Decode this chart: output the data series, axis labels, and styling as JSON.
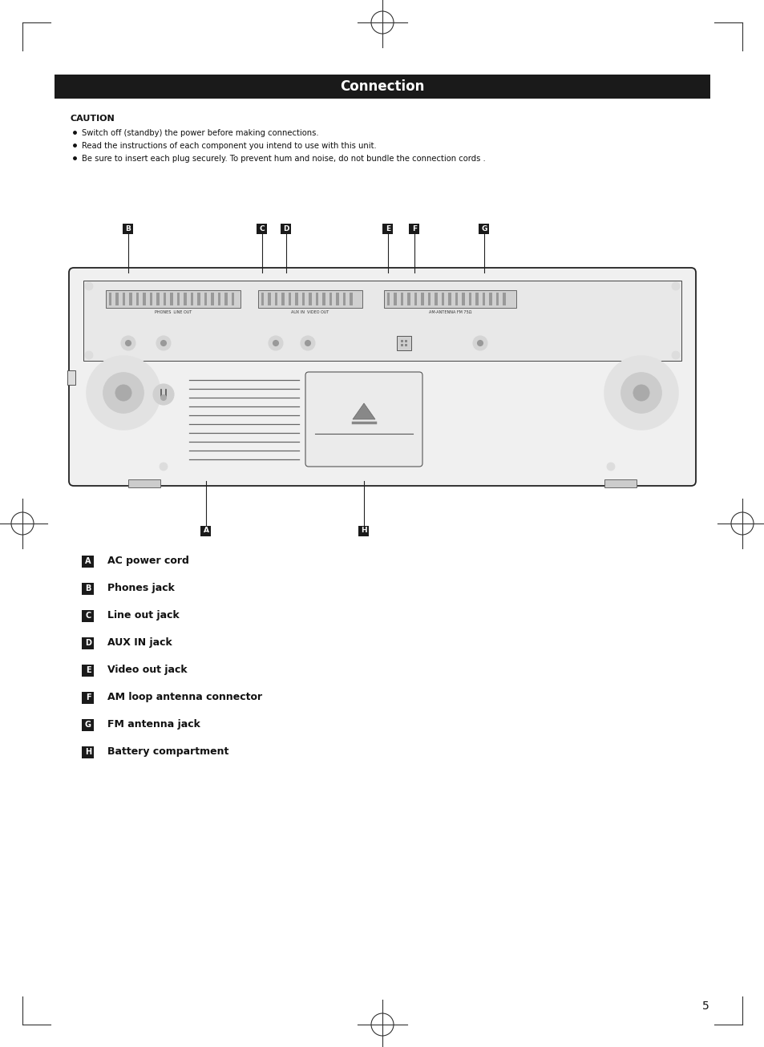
{
  "title": "Connection",
  "title_bg": "#1a1a1a",
  "title_color": "#ffffff",
  "title_fontsize": 12,
  "page_bg": "#ffffff",
  "caution_title": "CAUTION",
  "caution_bullets": [
    "Switch off (standby) the power before making connections.",
    "Read the instructions of each component you intend to use with this unit.",
    "Be sure to insert each plug securely. To prevent hum and noise, do not bundle the connection cords ."
  ],
  "labels": [
    {
      "letter": "A",
      "description": "AC power cord"
    },
    {
      "letter": "B",
      "description": "Phones jack"
    },
    {
      "letter": "C",
      "description": "Line out jack"
    },
    {
      "letter": "D",
      "description": "AUX IN jack"
    },
    {
      "letter": "E",
      "description": "Video out jack"
    },
    {
      "letter": "F",
      "description": "AM loop antenna connector"
    },
    {
      "letter": "G",
      "description": "FM antenna jack"
    },
    {
      "letter": "H",
      "description": "Battery compartment"
    }
  ],
  "page_number": "5",
  "label_box_color": "#1a1a1a",
  "label_text_color": "#ffffff",
  "body_text_color": "#111111"
}
